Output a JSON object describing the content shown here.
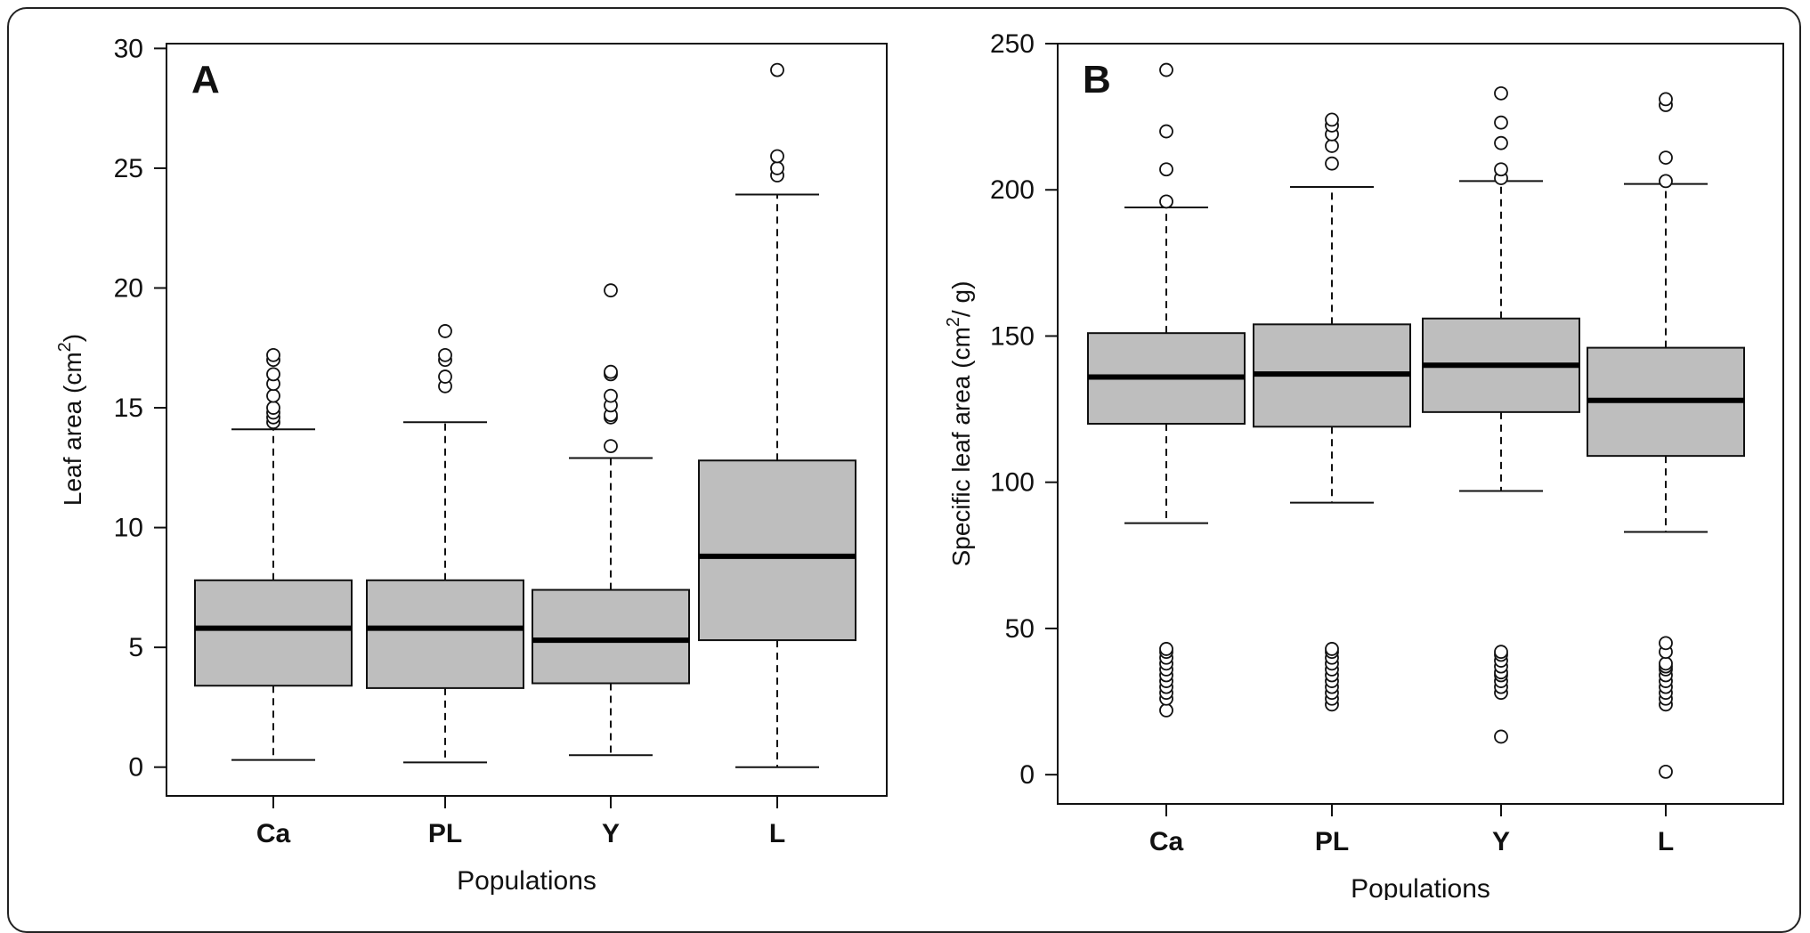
{
  "chart_data": [
    {
      "type": "boxplot",
      "panel_label": "A",
      "xlabel": "Populations",
      "ylabel_main": "Leaf area (cm",
      "ylabel_sup": "2",
      "ylabel_tail": ")",
      "ylim": [
        -1.2,
        30.2
      ],
      "yticks": [
        0,
        5,
        10,
        15,
        20,
        25,
        30
      ],
      "ytick_labels": [
        "0",
        "5",
        "10",
        "15",
        "20",
        "25",
        "30"
      ],
      "box_color": "#bebebe",
      "categories": [
        "Ca",
        "PL",
        "Y",
        "L"
      ],
      "boxes": [
        {
          "whisker_low": 0.3,
          "q1": 3.4,
          "median": 5.8,
          "q3": 7.8,
          "whisker_high": 14.1,
          "outliers": [
            14.4,
            14.6,
            14.8,
            15.0,
            15.5,
            16.0,
            16.4,
            17.0,
            17.2
          ]
        },
        {
          "whisker_low": 0.2,
          "q1": 3.3,
          "median": 5.8,
          "q3": 7.8,
          "whisker_high": 14.4,
          "outliers": [
            15.9,
            16.3,
            17.0,
            17.2,
            18.2
          ]
        },
        {
          "whisker_low": 0.5,
          "q1": 3.5,
          "median": 5.3,
          "q3": 7.4,
          "whisker_high": 12.9,
          "outliers": [
            13.4,
            14.6,
            14.7,
            15.1,
            15.5,
            16.4,
            16.5,
            19.9
          ]
        },
        {
          "whisker_low": 0.0,
          "q1": 5.3,
          "median": 8.8,
          "q3": 12.8,
          "whisker_high": 23.9,
          "outliers": [
            24.7,
            25.0,
            25.5,
            29.1
          ]
        }
      ]
    },
    {
      "type": "boxplot",
      "panel_label": "B",
      "xlabel": "Populations",
      "ylabel_main": "Specific leaf area (cm",
      "ylabel_sup": "2",
      "ylabel_tail": "/ g)",
      "ylim": [
        -10,
        250
      ],
      "yticks": [
        0,
        50,
        100,
        150,
        200,
        250
      ],
      "ytick_labels": [
        "0",
        "50",
        "100",
        "150",
        "200",
        "250"
      ],
      "box_color": "#bebebe",
      "categories": [
        "Ca",
        "PL",
        "Y",
        "L"
      ],
      "boxes": [
        {
          "whisker_low": 86,
          "q1": 120,
          "median": 136,
          "q3": 151,
          "whisker_high": 194,
          "outliers": [
            22,
            26,
            28,
            30,
            32,
            34,
            36,
            38,
            40,
            42,
            43,
            196,
            207,
            220,
            241
          ]
        },
        {
          "whisker_low": 93,
          "q1": 119,
          "median": 137,
          "q3": 154,
          "whisker_high": 201,
          "outliers": [
            24,
            26,
            28,
            30,
            32,
            34,
            36,
            38,
            40,
            42,
            43,
            209,
            215,
            219,
            222,
            224
          ]
        },
        {
          "whisker_low": 97,
          "q1": 124,
          "median": 140,
          "q3": 156,
          "whisker_high": 203,
          "outliers": [
            13,
            28,
            30,
            32,
            34,
            35,
            37,
            39,
            41,
            42,
            204,
            207,
            216,
            223,
            233
          ]
        },
        {
          "whisker_low": 83,
          "q1": 109,
          "median": 128,
          "q3": 146,
          "whisker_high": 202,
          "outliers": [
            1,
            24,
            26,
            28,
            30,
            32,
            34,
            36,
            37,
            38,
            42,
            45,
            203,
            211,
            229,
            231
          ]
        }
      ]
    }
  ]
}
